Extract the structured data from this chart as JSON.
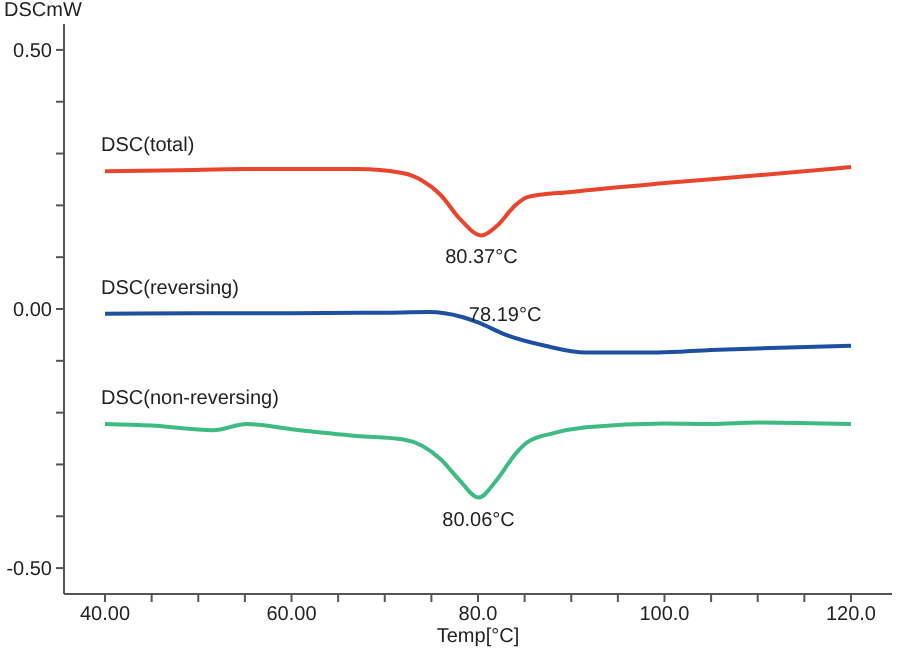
{
  "chart_data": {
    "type": "line",
    "xlabel": "Temp[°C]",
    "ylabel": "DSCmW",
    "xlim": [
      35.6,
      124.4
    ],
    "ylim": [
      -0.55,
      0.55
    ],
    "xticks": [
      {
        "value": 40,
        "label": "40.00"
      },
      {
        "value": 45,
        "label": null
      },
      {
        "value": 50,
        "label": null
      },
      {
        "value": 55,
        "label": null
      },
      {
        "value": 60,
        "label": "60.00"
      },
      {
        "value": 65,
        "label": null
      },
      {
        "value": 70,
        "label": null
      },
      {
        "value": 75,
        "label": null
      },
      {
        "value": 80,
        "label": "80.0"
      },
      {
        "value": 85,
        "label": null
      },
      {
        "value": 90,
        "label": null
      },
      {
        "value": 95,
        "label": null
      },
      {
        "value": 100,
        "label": "100.0"
      },
      {
        "value": 105,
        "label": null
      },
      {
        "value": 110,
        "label": null
      },
      {
        "value": 115,
        "label": null
      },
      {
        "value": 120,
        "label": "120.0"
      }
    ],
    "yticks": [
      {
        "value": -0.5,
        "label": "-0.50"
      },
      {
        "value": -0.4,
        "label": null
      },
      {
        "value": -0.3,
        "label": null
      },
      {
        "value": -0.2,
        "label": null
      },
      {
        "value": -0.1,
        "label": null
      },
      {
        "value": 0,
        "label": "0.00"
      },
      {
        "value": 0.1,
        "label": null
      },
      {
        "value": 0.2,
        "label": null
      },
      {
        "value": 0.3,
        "label": null
      },
      {
        "value": 0.4,
        "label": null
      },
      {
        "value": 0.5,
        "label": "0.50"
      }
    ],
    "grid": false,
    "marker": "none",
    "line_style": "solid",
    "series": [
      {
        "name": "DSC(total)",
        "color": "#e8452c",
        "x": [
          40,
          48,
          55,
          62,
          67,
          72,
          74,
          76,
          78,
          80.37,
          82,
          84,
          85.3,
          90,
          100.7,
          110,
          120
        ],
        "values": [
          0.266,
          0.268,
          0.27,
          0.27,
          0.27,
          0.262,
          0.248,
          0.22,
          0.175,
          0.142,
          0.16,
          0.2,
          0.216,
          0.226,
          0.244,
          0.258,
          0.274
        ]
      },
      {
        "name": "DSC(reversing)",
        "color": "#1f4fa0",
        "x": [
          40,
          50,
          60,
          70,
          74.8,
          78.19,
          80,
          83,
          87.2,
          91.6,
          95,
          99.3,
          105,
          110,
          120
        ],
        "values": [
          -0.009,
          -0.008,
          -0.008,
          -0.007,
          -0.006,
          -0.015,
          -0.026,
          -0.05,
          -0.071,
          -0.084,
          -0.084,
          -0.084,
          -0.079,
          -0.076,
          -0.071
        ]
      },
      {
        "name": "DSC(non-reversing)",
        "color": "#3dbb82",
        "x": [
          40,
          45,
          51.6,
          55.2,
          60,
          67,
          72,
          74,
          76,
          78,
          80.06,
          82,
          84,
          85.3,
          88,
          91.6,
          100,
          105,
          110,
          120
        ],
        "values": [
          -0.222,
          -0.225,
          -0.234,
          -0.222,
          -0.232,
          -0.245,
          -0.252,
          -0.264,
          -0.29,
          -0.33,
          -0.364,
          -0.33,
          -0.28,
          -0.257,
          -0.24,
          -0.228,
          -0.221,
          -0.222,
          -0.219,
          -0.222
        ]
      }
    ],
    "annotations": [
      {
        "text": "80.37°C",
        "x": 80.37,
        "y": 0.142
      },
      {
        "text": "78.19°C",
        "x": 78.19,
        "y": -0.015
      },
      {
        "text": "80.06°C",
        "x": 80.06,
        "y": -0.364
      }
    ]
  }
}
